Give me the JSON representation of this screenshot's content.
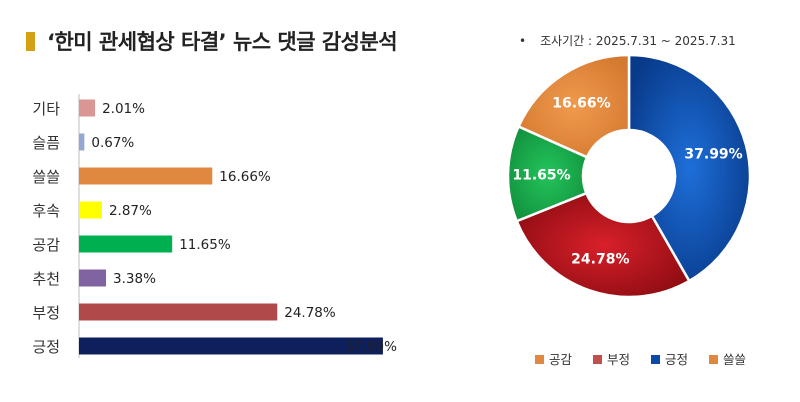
{
  "title": "‘한미 관세협상 타결’ 뉴스 댓글 감성분석",
  "period": "조사기간 : 2025.7.31 ~ 2025.7.31",
  "period_bullet": "•",
  "chart_data": [
    {
      "type": "bar",
      "orientation": "horizontal",
      "categories": [
        "기타",
        "슬픔",
        "쓸쓸",
        "후속",
        "공감",
        "추천",
        "부정",
        "긍정"
      ],
      "values": [
        2.01,
        0.67,
        16.66,
        2.87,
        11.65,
        3.38,
        24.78,
        37.99
      ],
      "value_labels": [
        "2.01%",
        "0.67%",
        "16.66%",
        "2.87%",
        "11.65%",
        "3.38%",
        "24.78%",
        "37.99%"
      ],
      "colors": [
        "#d99694",
        "#95a7d3",
        "#e0883f",
        "#ffff00",
        "#00b050",
        "#8064a2",
        "#b0494a",
        "#0d1f5c"
      ],
      "xlim": [
        0,
        42
      ],
      "grid": false
    },
    {
      "type": "pie",
      "donut": true,
      "labels": [
        "긍정",
        "부정",
        "공감",
        "쓸쓸"
      ],
      "values": [
        37.99,
        24.78,
        11.65,
        16.66
      ],
      "value_labels": [
        "37.99%",
        "24.78%",
        "11.65%",
        "16.66%"
      ],
      "colors": [
        "#0b4aa8",
        "#b3141b",
        "#16a84a",
        "#e0883f"
      ],
      "legend": {
        "placement": "bottom",
        "entries": [
          {
            "label": "공감",
            "color": "#e0883f"
          },
          {
            "label": "부정",
            "color": "#c0504d"
          },
          {
            "label": "긍정",
            "color": "#0b4aa8"
          },
          {
            "label": "쓸쓸",
            "color": "#e0883f"
          }
        ]
      }
    }
  ]
}
